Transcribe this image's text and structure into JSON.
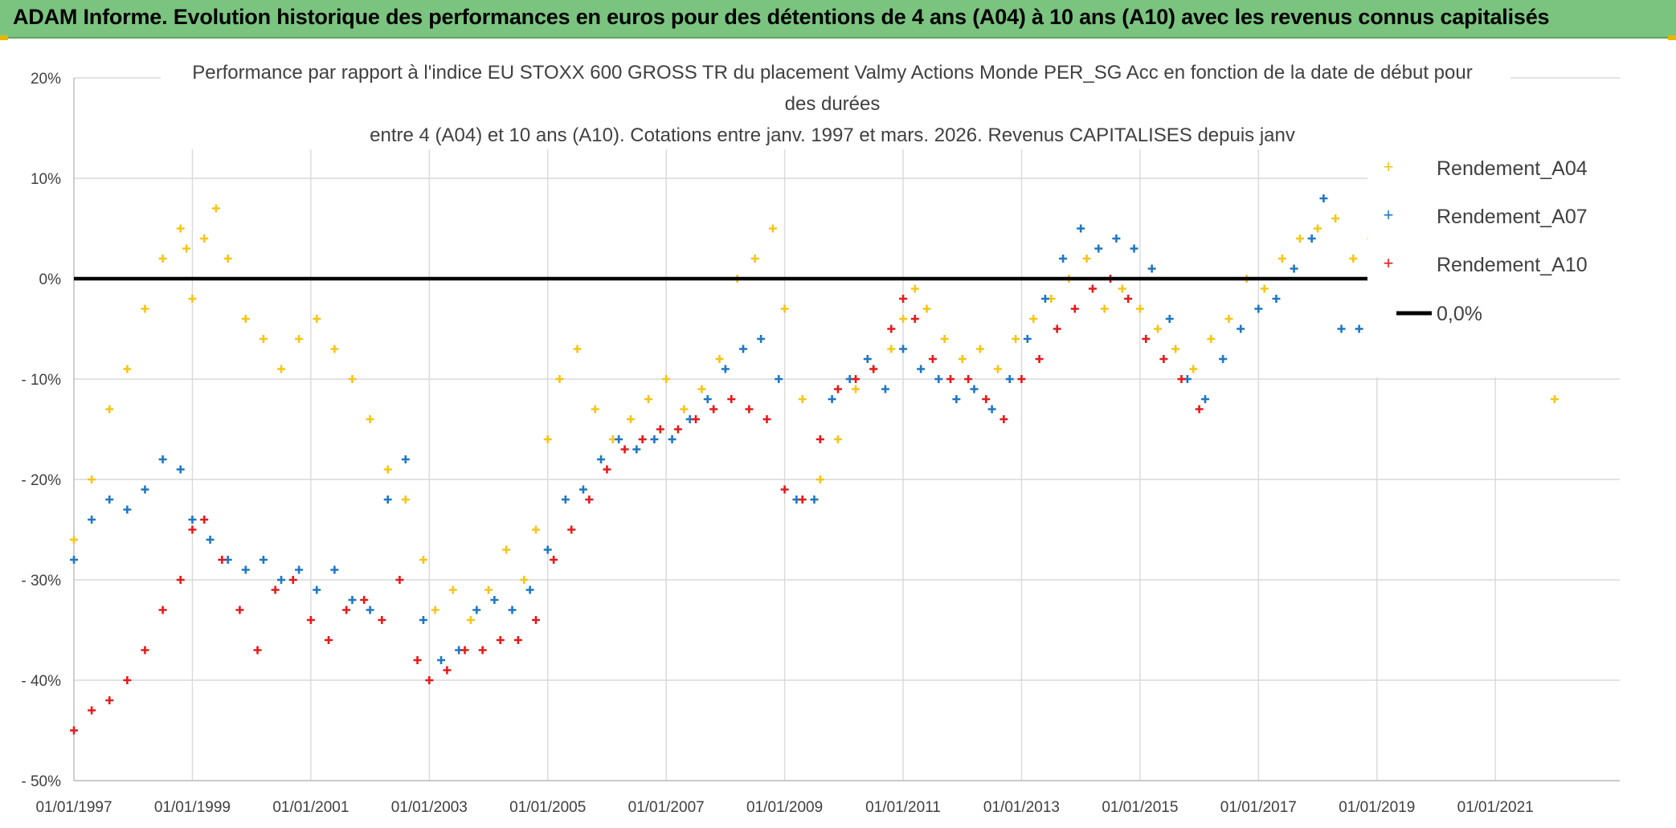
{
  "banner": {
    "title": "ADAM Informe. Evolution historique des performances en euros pour des détentions de 4 ans (A04) à 10 ans (A10) avec les revenus connus capitalisés"
  },
  "colors": {
    "banner": "#7ac47f",
    "a04": "#f5c518",
    "a07": "#1f77c4",
    "a10": "#e41a1c",
    "zero": "#000000"
  },
  "chart_data": {
    "type": "scatter",
    "title_lines": [
      "Performance par rapport à l'indice EU STOXX 600 GROSS TR  du placement Valmy Actions Monde PER_SG Acc en fonction de la date de début pour",
      "des durées",
      "entre 4 (A04) et 10 ans (A10). Cotations entre janv. 1997 et mars. 2026. Revenus CAPITALISES depuis janv"
    ],
    "x_ticks": [
      "01/01/1997",
      "01/01/1999",
      "01/01/2001",
      "01/01/2003",
      "01/01/2005",
      "01/01/2007",
      "01/01/2009",
      "01/01/2011",
      "01/01/2013",
      "01/01/2015",
      "01/01/2017",
      "01/01/2019",
      "01/01/2021"
    ],
    "y_ticks": [
      "20%",
      "10%",
      "0%",
      "- 10%",
      "- 20%",
      "- 30%",
      "- 40%",
      "- 50%"
    ],
    "xlim": [
      1997.0,
      2023.1
    ],
    "ylim": [
      -50,
      20
    ],
    "grid": true,
    "legend_position": "right",
    "series": [
      {
        "name": "Rendement_A04",
        "color": "#f5c518",
        "x": [
          1997.0,
          1997.3,
          1997.6,
          1997.9,
          1998.2,
          1998.5,
          1998.8,
          1998.9,
          1999.0,
          1999.2,
          1999.4,
          1999.6,
          1999.9,
          2000.2,
          2000.5,
          2000.8,
          2001.1,
          2001.4,
          2001.7,
          2002.0,
          2002.3,
          2002.6,
          2002.9,
          2003.1,
          2003.4,
          2003.7,
          2004.0,
          2004.3,
          2004.6,
          2004.8,
          2005.0,
          2005.2,
          2005.5,
          2005.8,
          2006.1,
          2006.4,
          2006.7,
          2007.0,
          2007.3,
          2007.6,
          2007.9,
          2008.2,
          2008.5,
          2008.8,
          2009.0,
          2009.3,
          2009.6,
          2009.9,
          2010.2,
          2010.5,
          2010.8,
          2011.0,
          2011.2,
          2011.4,
          2011.7,
          2012.0,
          2012.3,
          2012.6,
          2012.9,
          2013.2,
          2013.5,
          2013.8,
          2014.1,
          2014.4,
          2014.7,
          2015.0,
          2015.3,
          2015.6,
          2015.9,
          2016.2,
          2016.5,
          2016.8,
          2017.1,
          2017.4,
          2017.7,
          2018.0,
          2018.3,
          2018.6,
          2018.9,
          2019.2,
          2019.6,
          2020.0,
          2020.4,
          2020.8,
          2021.2,
          2021.6,
          2022.0,
          2022.3,
          2022.6,
          2022.9
        ],
        "y": [
          -26,
          -20,
          -13,
          -9,
          -3,
          2,
          5,
          3,
          -2,
          4,
          7,
          2,
          -4,
          -6,
          -9,
          -6,
          -4,
          -7,
          -10,
          -14,
          -19,
          -22,
          -28,
          -33,
          -31,
          -34,
          -31,
          -27,
          -30,
          -25,
          -16,
          -10,
          -7,
          -13,
          -16,
          -14,
          -12,
          -10,
          -13,
          -11,
          -8,
          0,
          2,
          5,
          -3,
          -12,
          -20,
          -16,
          -11,
          -9,
          -7,
          -4,
          -1,
          -3,
          -6,
          -8,
          -7,
          -9,
          -6,
          -4,
          -2,
          0,
          2,
          -3,
          -1,
          -3,
          -5,
          -7,
          -9,
          -6,
          -4,
          0,
          -1,
          2,
          4,
          5,
          6,
          2,
          4,
          -2,
          -4,
          -6,
          -9,
          -7,
          -8,
          -9,
          -12,
          -8,
          -7,
          -9
        ]
      },
      {
        "name": "Rendement_A07",
        "color": "#1f77c4",
        "x": [
          1997.0,
          1997.3,
          1997.6,
          1997.9,
          1998.2,
          1998.5,
          1998.8,
          1999.0,
          1999.3,
          1999.6,
          1999.9,
          2000.2,
          2000.5,
          2000.8,
          2001.1,
          2001.4,
          2001.7,
          2002.0,
          2002.3,
          2002.6,
          2002.9,
          2003.2,
          2003.5,
          2003.8,
          2004.1,
          2004.4,
          2004.7,
          2005.0,
          2005.3,
          2005.6,
          2005.9,
          2006.2,
          2006.5,
          2006.8,
          2007.1,
          2007.4,
          2007.7,
          2008.0,
          2008.3,
          2008.6,
          2008.9,
          2009.2,
          2009.5,
          2009.8,
          2010.1,
          2010.4,
          2010.7,
          2011.0,
          2011.3,
          2011.6,
          2011.9,
          2012.2,
          2012.5,
          2012.8,
          2013.1,
          2013.4,
          2013.7,
          2014.0,
          2014.3,
          2014.6,
          2014.9,
          2015.2,
          2015.5,
          2015.8,
          2016.1,
          2016.4,
          2016.7,
          2017.0,
          2017.3,
          2017.6,
          2017.9,
          2018.1,
          2018.4,
          2018.7,
          2019.0,
          2019.3
        ],
        "y": [
          -28,
          -24,
          -22,
          -23,
          -21,
          -18,
          -19,
          -24,
          -26,
          -28,
          -29,
          -28,
          -30,
          -29,
          -31,
          -29,
          -32,
          -33,
          -22,
          -18,
          -34,
          -38,
          -37,
          -33,
          -32,
          -33,
          -31,
          -27,
          -22,
          -21,
          -18,
          -16,
          -17,
          -16,
          -16,
          -14,
          -12,
          -9,
          -7,
          -6,
          -10,
          -22,
          -22,
          -12,
          -10,
          -8,
          -11,
          -7,
          -9,
          -10,
          -12,
          -11,
          -13,
          -10,
          -6,
          -2,
          2,
          5,
          3,
          4,
          3,
          1,
          -4,
          -10,
          -12,
          -8,
          -5,
          -3,
          -2,
          1,
          4,
          8,
          -5,
          -5,
          -6,
          -8
        ]
      },
      {
        "name": "Rendement_A10",
        "color": "#e41a1c",
        "x": [
          1997.0,
          1997.3,
          1997.6,
          1997.9,
          1998.2,
          1998.5,
          1998.8,
          1999.0,
          1999.2,
          1999.5,
          1999.8,
          2000.1,
          2000.4,
          2000.7,
          2001.0,
          2001.3,
          2001.6,
          2001.9,
          2002.2,
          2002.5,
          2002.8,
          2003.0,
          2003.3,
          2003.6,
          2003.9,
          2004.2,
          2004.5,
          2004.8,
          2005.1,
          2005.4,
          2005.7,
          2006.0,
          2006.3,
          2006.6,
          2006.9,
          2007.2,
          2007.5,
          2007.8,
          2008.1,
          2008.4,
          2008.7,
          2009.0,
          2009.3,
          2009.6,
          2009.9,
          2010.2,
          2010.5,
          2010.8,
          2011.0,
          2011.2,
          2011.5,
          2011.8,
          2012.1,
          2012.4,
          2012.7,
          2013.0,
          2013.3,
          2013.6,
          2013.9,
          2014.2,
          2014.5,
          2014.8,
          2015.1,
          2015.4,
          2015.7,
          2016.0
        ],
        "y": [
          -45,
          -43,
          -42,
          -40,
          -37,
          -33,
          -30,
          -25,
          -24,
          -28,
          -33,
          -37,
          -31,
          -30,
          -34,
          -36,
          -33,
          -32,
          -34,
          -30,
          -38,
          -40,
          -39,
          -37,
          -37,
          -36,
          -36,
          -34,
          -28,
          -25,
          -22,
          -19,
          -17,
          -16,
          -15,
          -15,
          -14,
          -13,
          -12,
          -13,
          -14,
          -21,
          -22,
          -16,
          -11,
          -10,
          -9,
          -5,
          -2,
          -4,
          -8,
          -10,
          -10,
          -12,
          -14,
          -10,
          -8,
          -5,
          -3,
          -1,
          0,
          -2,
          -6,
          -8,
          -10,
          -13
        ]
      },
      {
        "name": "0,0%",
        "color": "#000000",
        "x": [
          1997.0,
          2023.1
        ],
        "y": [
          0,
          0
        ]
      }
    ]
  }
}
